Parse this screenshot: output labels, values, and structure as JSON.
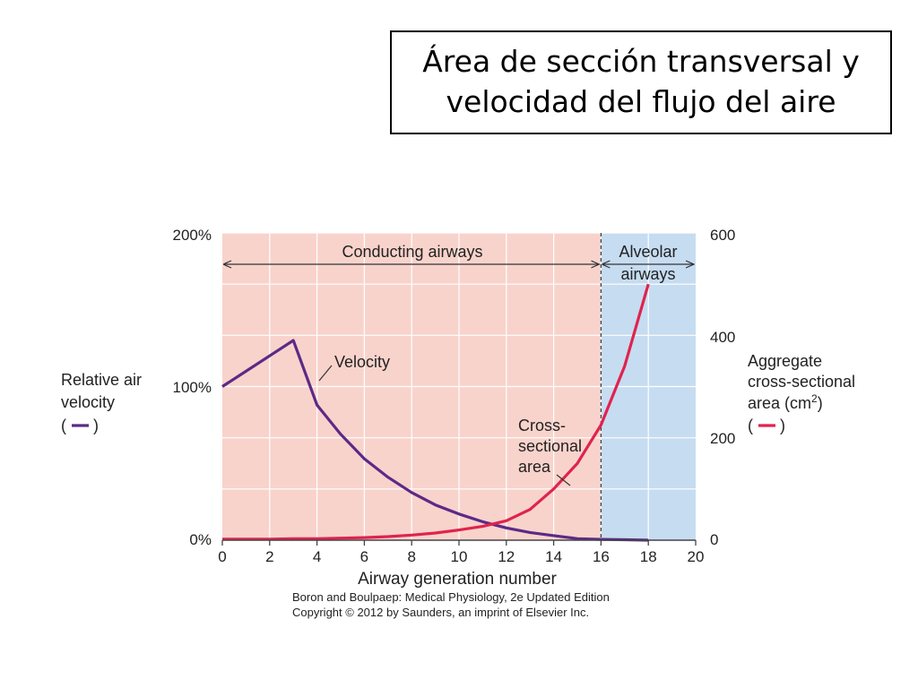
{
  "slide": {
    "title_line1": "Área de sección transversal y",
    "title_line2": "velocidad del flujo del aire"
  },
  "chart_data": {
    "type": "line",
    "x": [
      0,
      1,
      2,
      3,
      4,
      5,
      6,
      7,
      8,
      9,
      10,
      11,
      12,
      13,
      14,
      15,
      16,
      17,
      18
    ],
    "series": [
      {
        "name": "Velocity",
        "axis": "left",
        "color": "#5b2a86",
        "values": [
          100,
          110,
          120,
          130,
          88,
          69,
          53,
          41,
          31,
          23,
          17,
          12,
          8,
          5,
          3,
          1,
          0.5,
          0.3,
          0
        ]
      },
      {
        "name": "Cross-sectional area",
        "axis": "right",
        "color": "#e0234e",
        "values": [
          2,
          2,
          2,
          3,
          3,
          4,
          5,
          7,
          10,
          14,
          20,
          27,
          38,
          60,
          100,
          150,
          225,
          340,
          500
        ]
      }
    ],
    "xlabel": "Airway generation number",
    "xlim": [
      0,
      20
    ],
    "xticks": [
      "0",
      "2",
      "4",
      "6",
      "8",
      "10",
      "12",
      "14",
      "16",
      "18",
      "20"
    ],
    "ylabel_left": [
      "Relative air",
      "velocity",
      "(",
      ")"
    ],
    "ylim_left": [
      0,
      200
    ],
    "yticks_left": [
      "0%",
      "100%",
      "200%"
    ],
    "ylabel_right": [
      "Aggregate",
      "cross-sectional",
      "area (cm",
      "2",
      ")",
      "(",
      ")"
    ],
    "ylim_right": [
      0,
      600
    ],
    "yticks_right": [
      "0",
      "200",
      "400",
      "600"
    ],
    "regions": [
      {
        "label": "Conducting airways",
        "from": 0,
        "to": 16,
        "color": "#f8d3cc"
      },
      {
        "label_lines": [
          "Alveolar",
          "airways"
        ],
        "from": 16,
        "to": 20,
        "color": "#c6dcf1"
      }
    ],
    "annotations": {
      "velocity": "Velocity",
      "area_lines": [
        "Cross-",
        "sectional",
        "area"
      ]
    },
    "grid": true,
    "source_line1": "Boron and Boulpaep: Medical Physiology, 2e Updated Edition",
    "source_line2": "Copyright © 2012 by Saunders, an imprint of Elsevier Inc."
  }
}
